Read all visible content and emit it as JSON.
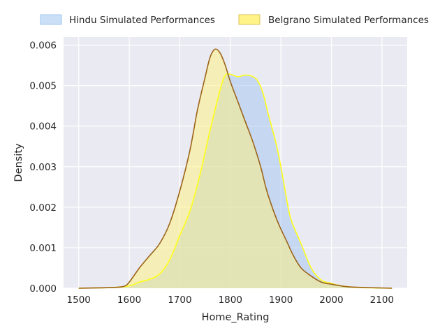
{
  "chart_data": {
    "type": "area",
    "xlabel": "Home_Rating",
    "ylabel": "Density",
    "xlim": [
      1470,
      2150
    ],
    "ylim": [
      0,
      0.0062
    ],
    "xticks": [
      1500,
      1600,
      1700,
      1800,
      1900,
      2000,
      2100
    ],
    "xtick_labels": [
      "1500",
      "1600",
      "1700",
      "1800",
      "1900",
      "2000",
      "2100"
    ],
    "yticks": [
      0,
      0.001,
      0.002,
      0.003,
      0.004,
      0.005,
      0.006
    ],
    "ytick_labels": [
      "0.000",
      "0.001",
      "0.002",
      "0.003",
      "0.004",
      "0.005",
      "0.006"
    ],
    "grid": true,
    "legend_position": "top-center",
    "series": [
      {
        "name": "Hindu Simulated Performances",
        "fill_color": "#a1c4f0",
        "line_color": "#ffff1a",
        "points": [
          [
            1500,
            0.0
          ],
          [
            1540,
            1e-05
          ],
          [
            1570,
            2e-05
          ],
          [
            1600,
            6e-05
          ],
          [
            1620,
            0.00015
          ],
          [
            1640,
            0.00022
          ],
          [
            1660,
            0.00035
          ],
          [
            1680,
            0.0007
          ],
          [
            1700,
            0.0013
          ],
          [
            1720,
            0.0019
          ],
          [
            1740,
            0.0028
          ],
          [
            1760,
            0.0039
          ],
          [
            1780,
            0.0049
          ],
          [
            1790,
            0.00525
          ],
          [
            1800,
            0.00528
          ],
          [
            1815,
            0.00522
          ],
          [
            1830,
            0.00526
          ],
          [
            1845,
            0.00522
          ],
          [
            1855,
            0.0051
          ],
          [
            1865,
            0.0048
          ],
          [
            1875,
            0.0043
          ],
          [
            1890,
            0.0036
          ],
          [
            1900,
            0.003
          ],
          [
            1910,
            0.0023
          ],
          [
            1920,
            0.0017
          ],
          [
            1940,
            0.0011
          ],
          [
            1960,
            0.0005
          ],
          [
            1980,
            0.0002
          ],
          [
            2000,
            0.00012
          ],
          [
            2020,
            6e-05
          ],
          [
            2050,
            2e-05
          ],
          [
            2080,
            1e-05
          ],
          [
            2120,
            0.0
          ]
        ]
      },
      {
        "name": "Belgrano Simulated Performances",
        "fill_color": "#fff27a",
        "line_color": "#9c641a",
        "points": [
          [
            1500,
            0.0
          ],
          [
            1540,
            1e-05
          ],
          [
            1570,
            2e-05
          ],
          [
            1590,
            5e-05
          ],
          [
            1600,
            0.00015
          ],
          [
            1620,
            0.0005
          ],
          [
            1640,
            0.0008
          ],
          [
            1660,
            0.0011
          ],
          [
            1680,
            0.0016
          ],
          [
            1700,
            0.0024
          ],
          [
            1720,
            0.0034
          ],
          [
            1735,
            0.0044
          ],
          [
            1750,
            0.0052
          ],
          [
            1760,
            0.0057
          ],
          [
            1770,
            0.0059
          ],
          [
            1780,
            0.0058
          ],
          [
            1790,
            0.0055
          ],
          [
            1800,
            0.0051
          ],
          [
            1815,
            0.0046
          ],
          [
            1830,
            0.0041
          ],
          [
            1845,
            0.0036
          ],
          [
            1860,
            0.003
          ],
          [
            1870,
            0.0025
          ],
          [
            1880,
            0.0021
          ],
          [
            1895,
            0.0016
          ],
          [
            1910,
            0.0012
          ],
          [
            1925,
            0.0008
          ],
          [
            1940,
            0.0005
          ],
          [
            1960,
            0.0003
          ],
          [
            1980,
            0.00015
          ],
          [
            2000,
            0.0001
          ],
          [
            2030,
            4e-05
          ],
          [
            2060,
            2e-05
          ],
          [
            2090,
            1e-05
          ],
          [
            2120,
            0.0
          ]
        ]
      }
    ]
  }
}
